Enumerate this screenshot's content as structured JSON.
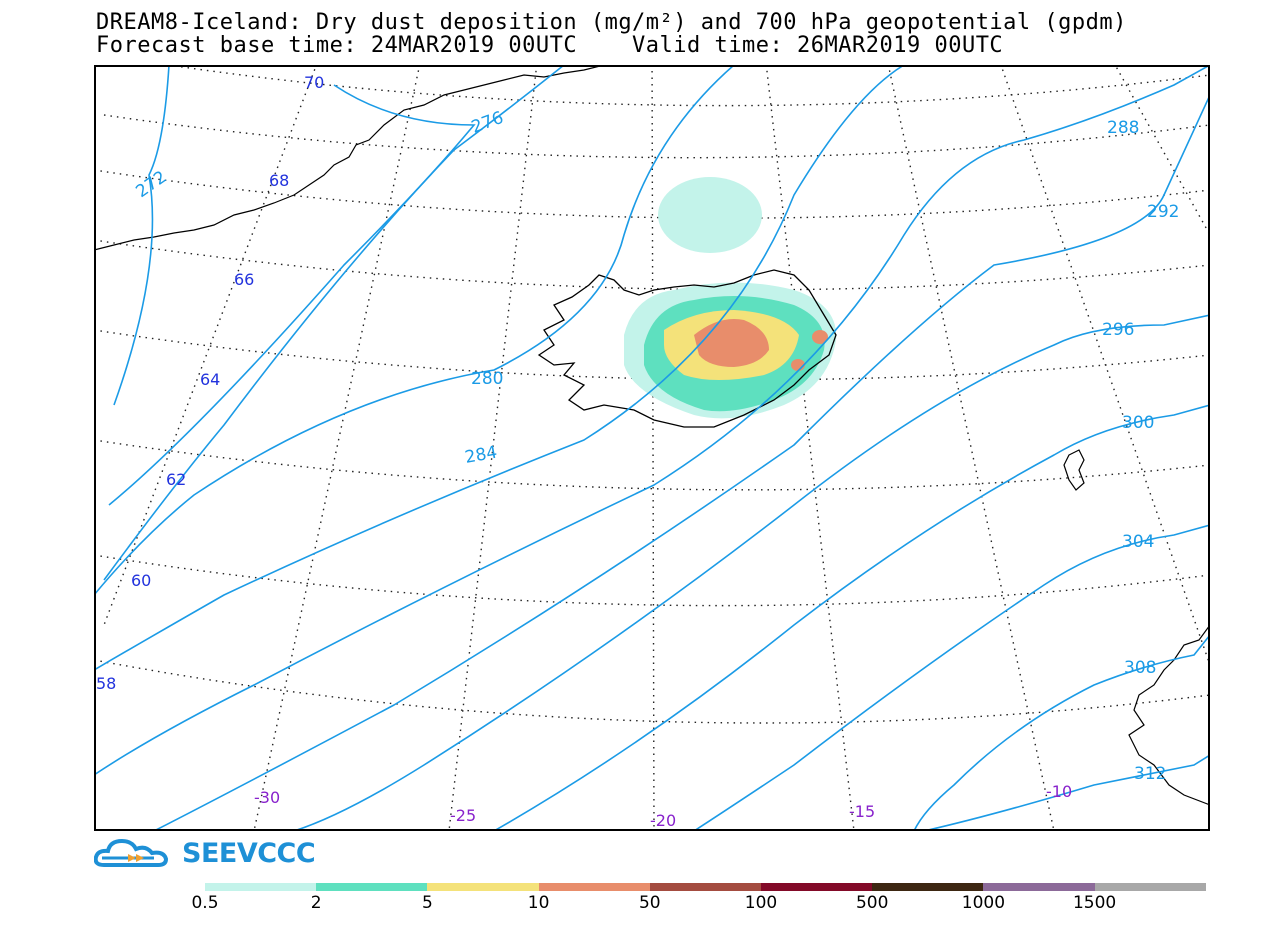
{
  "header": {
    "title_line1": "DREAM8-Iceland: Dry dust deposition (mg/m²) and 700 hPa geopotential (gpdm)",
    "title_line2": "Forecast base time: 24MAR2019 00UTC    Valid time: 26MAR2019 00UTC"
  },
  "map": {
    "latitude_labels": [
      "70",
      "68",
      "66",
      "64",
      "62",
      "60",
      "58"
    ],
    "longitude_labels": [
      "-30",
      "-25",
      "-20",
      "-15",
      "-10"
    ],
    "geopotential_contour_labels": [
      "272",
      "276",
      "280",
      "284",
      "288",
      "292",
      "296",
      "300",
      "304",
      "308",
      "312"
    ],
    "colors": {
      "contour": "#1b9be6",
      "lat_label": "#2233dd",
      "lon_label": "#8822cc",
      "coastline": "#000000"
    }
  },
  "logo": {
    "text": "SEEVCCC",
    "icon": "cloud-logo-icon"
  },
  "legend": {
    "bins": [
      {
        "label": "0.5",
        "color": "#c3f3ea"
      },
      {
        "label": "2",
        "color": "#5ee0bf"
      },
      {
        "label": "5",
        "color": "#f4e27a"
      },
      {
        "label": "10",
        "color": "#e88d6b"
      },
      {
        "label": "50",
        "color": "#a44c40"
      },
      {
        "label": "100",
        "color": "#830a28"
      },
      {
        "label": "500",
        "color": "#3d2712"
      },
      {
        "label": "1000",
        "color": "#8c6a99"
      },
      {
        "label": "1500",
        "color": "#a8a8a8"
      }
    ]
  }
}
